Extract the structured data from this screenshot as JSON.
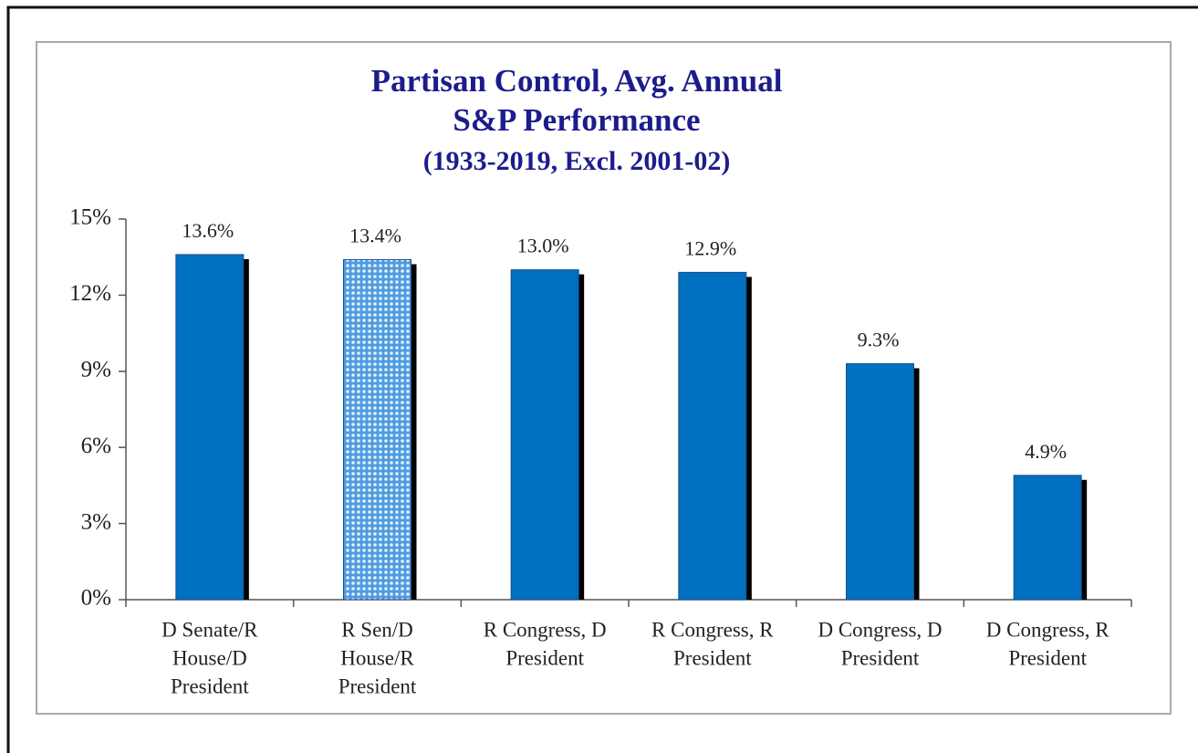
{
  "chart_data": {
    "type": "bar",
    "title": [
      "Partisan Control, Avg. Annual",
      "S&P Performance"
    ],
    "subtitle": "(1933-2019, Excl. 2001-02)",
    "categories": [
      [
        "D Senate/R",
        "House/D",
        "President"
      ],
      [
        "R Sen/D",
        "House/R",
        "President"
      ],
      [
        "R Congress, D",
        "President"
      ],
      [
        "R Congress, R",
        "President"
      ],
      [
        "D Congress, D",
        "President"
      ],
      [
        "D Congress, R",
        "President"
      ]
    ],
    "values": [
      13.6,
      13.4,
      13.0,
      12.9,
      9.3,
      4.9
    ],
    "value_labels": [
      "13.6%",
      "13.4%",
      "13.0%",
      "12.9%",
      "9.3%",
      "4.9%"
    ],
    "colors": [
      "#0070c0",
      "#8cc4ee",
      "#0070c0",
      "#0070c0",
      "#0070c0",
      "#0070c0"
    ],
    "dotted": [
      false,
      true,
      false,
      false,
      false,
      false
    ],
    "ylim": [
      0,
      15
    ],
    "yticks": [
      {
        "value": 0,
        "label": "0%"
      },
      {
        "value": 3,
        "label": "3%"
      },
      {
        "value": 6,
        "label": "6%"
      },
      {
        "value": 9,
        "label": "9%"
      },
      {
        "value": 12,
        "label": "12%"
      },
      {
        "value": 15,
        "label": "15%"
      }
    ]
  }
}
